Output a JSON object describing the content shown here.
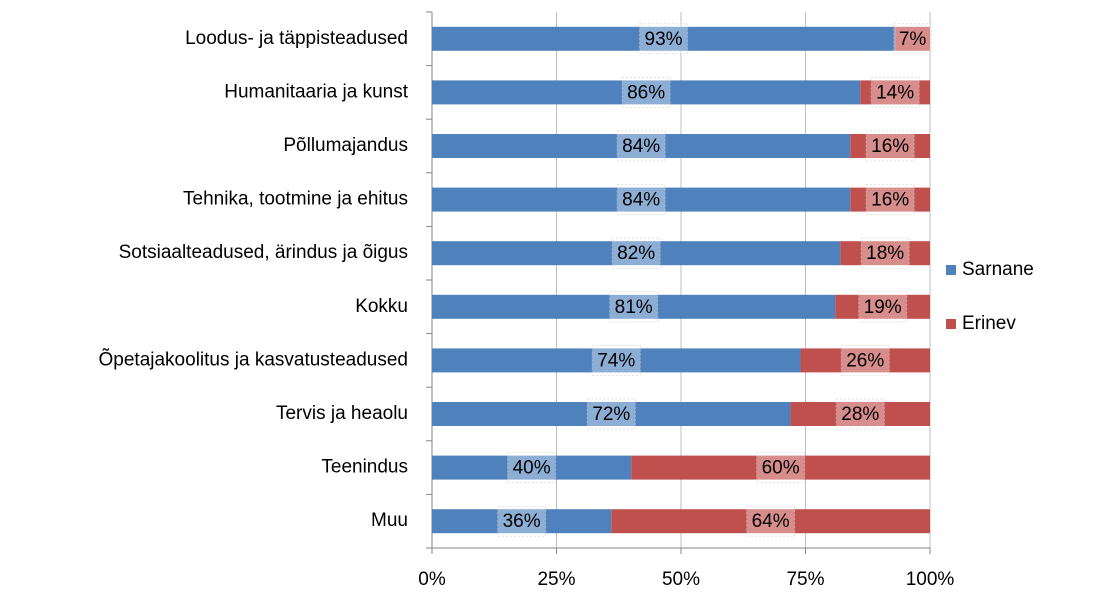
{
  "chart_data": {
    "type": "stacked-bar-horizontal",
    "categories": [
      "Loodus- ja täppisteadused",
      "Humanitaaria ja kunst",
      "Põllumajandus",
      "Tehnika, tootmine ja ehitus",
      "Sotsiaalteadused, ärindus ja õigus",
      "Kokku",
      "Õpetajakoolitus ja kasvatusteadused",
      "Tervis ja heaolu",
      "Teenindus",
      "Muu"
    ],
    "series": [
      {
        "name": "Sarnane",
        "color": "#4f81bd",
        "values": [
          93,
          86,
          84,
          84,
          82,
          81,
          74,
          72,
          40,
          36
        ],
        "value_labels": [
          "93%",
          "86%",
          "84%",
          "84%",
          "82%",
          "81%",
          "74%",
          "72%",
          "40%",
          "36%"
        ]
      },
      {
        "name": "Erinev",
        "color": "#c0504d",
        "values": [
          7,
          14,
          16,
          16,
          18,
          19,
          26,
          28,
          60,
          64
        ],
        "value_labels": [
          "7%",
          "14%",
          "16%",
          "16%",
          "18%",
          "19%",
          "26%",
          "28%",
          "60%",
          "64%"
        ]
      }
    ],
    "xlim": [
      0,
      100
    ],
    "xticks": [
      {
        "value": 0,
        "label": "0%"
      },
      {
        "value": 25,
        "label": "25%"
      },
      {
        "value": 50,
        "label": "50%"
      },
      {
        "value": 75,
        "label": "75%"
      },
      {
        "value": 100,
        "label": "100%"
      }
    ],
    "grid": true,
    "legend": "right"
  }
}
